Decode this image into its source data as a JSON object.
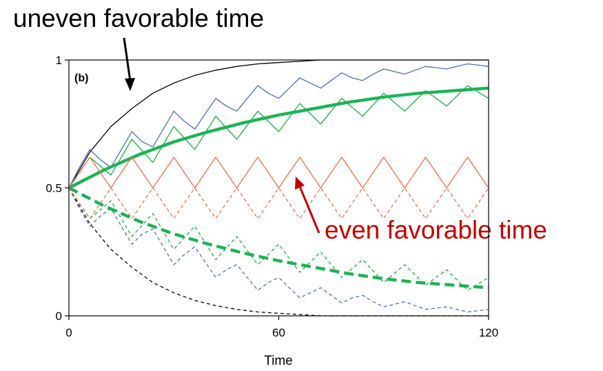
{
  "annotations": {
    "uneven": "uneven favorable time",
    "even": "even favorable time"
  },
  "chart_data": {
    "type": "line",
    "panel_label": "(b)",
    "xlabel": "Time",
    "ylabel": "",
    "xlim": [
      0,
      120
    ],
    "ylim": [
      0,
      1
    ],
    "xticks": [
      0,
      60,
      120
    ],
    "yticks": [
      0,
      0.5,
      1
    ],
    "ytick_labels": [
      "0",
      "0.5",
      "1"
    ],
    "grid": false,
    "series": [
      {
        "color": "#000000",
        "style": "solid",
        "width": 1.3,
        "x": [
          0,
          6,
          12,
          18,
          24,
          30,
          36,
          42,
          48,
          54,
          60,
          66,
          72,
          78,
          84,
          90,
          96,
          102,
          108,
          114,
          120
        ],
        "y": [
          0.5,
          0.64,
          0.74,
          0.81,
          0.87,
          0.91,
          0.94,
          0.96,
          0.975,
          0.985,
          0.99,
          0.995,
          1,
          1,
          1,
          1,
          1,
          1,
          1,
          1,
          1
        ]
      },
      {
        "color": "#000000",
        "style": "dashed",
        "width": 1.3,
        "x": [
          0,
          6,
          12,
          18,
          24,
          30,
          36,
          42,
          48,
          54,
          60,
          66,
          72,
          78,
          84,
          90,
          96,
          102,
          108,
          114,
          120
        ],
        "y": [
          0.5,
          0.36,
          0.26,
          0.19,
          0.13,
          0.09,
          0.06,
          0.04,
          0.025,
          0.015,
          0.01,
          0.005,
          0,
          0,
          0,
          0,
          0,
          0,
          0,
          0,
          0
        ]
      },
      {
        "color": "#4a6fb5",
        "style": "solid",
        "width": 1.3,
        "x": [
          0,
          3,
          6,
          9,
          12,
          15,
          18,
          21,
          24,
          27,
          30,
          33,
          36,
          39,
          42,
          45,
          48,
          51,
          54,
          57,
          60,
          63,
          66,
          69,
          72,
          75,
          78,
          81,
          84,
          87,
          90,
          93,
          96,
          99,
          102,
          105,
          108,
          111,
          114,
          117,
          120
        ],
        "y": [
          0.5,
          0.58,
          0.65,
          0.61,
          0.58,
          0.65,
          0.72,
          0.68,
          0.66,
          0.73,
          0.8,
          0.76,
          0.73,
          0.79,
          0.85,
          0.82,
          0.8,
          0.85,
          0.9,
          0.87,
          0.85,
          0.89,
          0.93,
          0.91,
          0.89,
          0.92,
          0.95,
          0.93,
          0.92,
          0.945,
          0.965,
          0.955,
          0.945,
          0.96,
          0.975,
          0.97,
          0.965,
          0.975,
          0.985,
          0.98,
          0.975
        ]
      },
      {
        "color": "#4a6fb5",
        "style": "dashed",
        "width": 1.3,
        "x": [
          0,
          3,
          6,
          9,
          12,
          15,
          18,
          21,
          24,
          27,
          30,
          33,
          36,
          39,
          42,
          45,
          48,
          51,
          54,
          57,
          60,
          63,
          66,
          69,
          72,
          75,
          78,
          81,
          84,
          87,
          90,
          93,
          96,
          99,
          102,
          105,
          108,
          111,
          114,
          117,
          120
        ],
        "y": [
          0.5,
          0.42,
          0.35,
          0.39,
          0.42,
          0.35,
          0.28,
          0.32,
          0.34,
          0.27,
          0.2,
          0.24,
          0.27,
          0.21,
          0.15,
          0.18,
          0.2,
          0.15,
          0.1,
          0.13,
          0.15,
          0.11,
          0.07,
          0.09,
          0.11,
          0.08,
          0.05,
          0.07,
          0.08,
          0.055,
          0.035,
          0.045,
          0.055,
          0.04,
          0.025,
          0.03,
          0.035,
          0.025,
          0.015,
          0.02,
          0.025
        ]
      },
      {
        "color": "#22aa44",
        "style": "solid",
        "width": 1.3,
        "x": [
          0,
          6,
          12,
          18,
          24,
          30,
          36,
          42,
          48,
          54,
          60,
          66,
          72,
          78,
          84,
          90,
          96,
          102,
          108,
          114,
          120
        ],
        "y": [
          0.5,
          0.62,
          0.55,
          0.69,
          0.6,
          0.74,
          0.65,
          0.78,
          0.69,
          0.8,
          0.72,
          0.83,
          0.75,
          0.85,
          0.78,
          0.87,
          0.8,
          0.88,
          0.82,
          0.9,
          0.85
        ]
      },
      {
        "color": "#22aa44",
        "style": "dashed",
        "width": 1.3,
        "x": [
          0,
          6,
          12,
          18,
          24,
          30,
          36,
          42,
          48,
          54,
          60,
          66,
          72,
          78,
          84,
          90,
          96,
          102,
          108,
          114,
          120
        ],
        "y": [
          0.5,
          0.38,
          0.45,
          0.31,
          0.4,
          0.26,
          0.35,
          0.22,
          0.31,
          0.2,
          0.28,
          0.17,
          0.25,
          0.15,
          0.22,
          0.13,
          0.2,
          0.12,
          0.18,
          0.1,
          0.15
        ]
      },
      {
        "color": "#1db354",
        "style": "solid",
        "width": 4.5,
        "x": [
          0,
          10,
          20,
          30,
          40,
          50,
          60,
          70,
          80,
          90,
          100,
          110,
          120
        ],
        "y": [
          0.5,
          0.57,
          0.63,
          0.68,
          0.72,
          0.755,
          0.785,
          0.81,
          0.835,
          0.855,
          0.87,
          0.88,
          0.89
        ]
      },
      {
        "color": "#1db354",
        "style": "dashed",
        "width": 4.5,
        "x": [
          0,
          10,
          20,
          30,
          40,
          50,
          60,
          70,
          80,
          90,
          100,
          110,
          120
        ],
        "y": [
          0.5,
          0.43,
          0.37,
          0.32,
          0.28,
          0.245,
          0.215,
          0.19,
          0.165,
          0.145,
          0.13,
          0.12,
          0.11
        ]
      },
      {
        "color": "#e8704a",
        "style": "solid",
        "width": 1.3,
        "x": [
          0,
          6,
          12,
          18,
          24,
          30,
          36,
          42,
          48,
          54,
          60,
          66,
          72,
          78,
          84,
          90,
          96,
          102,
          108,
          114,
          120
        ],
        "y": [
          0.5,
          0.62,
          0.5,
          0.62,
          0.5,
          0.62,
          0.5,
          0.62,
          0.5,
          0.62,
          0.5,
          0.62,
          0.5,
          0.62,
          0.5,
          0.62,
          0.5,
          0.62,
          0.5,
          0.62,
          0.5
        ]
      },
      {
        "color": "#e8704a",
        "style": "dashed",
        "width": 1.3,
        "x": [
          0,
          6,
          12,
          18,
          24,
          30,
          36,
          42,
          48,
          54,
          60,
          66,
          72,
          78,
          84,
          90,
          96,
          102,
          108,
          114,
          120
        ],
        "y": [
          0.5,
          0.38,
          0.5,
          0.38,
          0.5,
          0.38,
          0.5,
          0.38,
          0.5,
          0.38,
          0.5,
          0.38,
          0.5,
          0.38,
          0.5,
          0.38,
          0.5,
          0.38,
          0.5,
          0.38,
          0.5
        ]
      }
    ]
  }
}
